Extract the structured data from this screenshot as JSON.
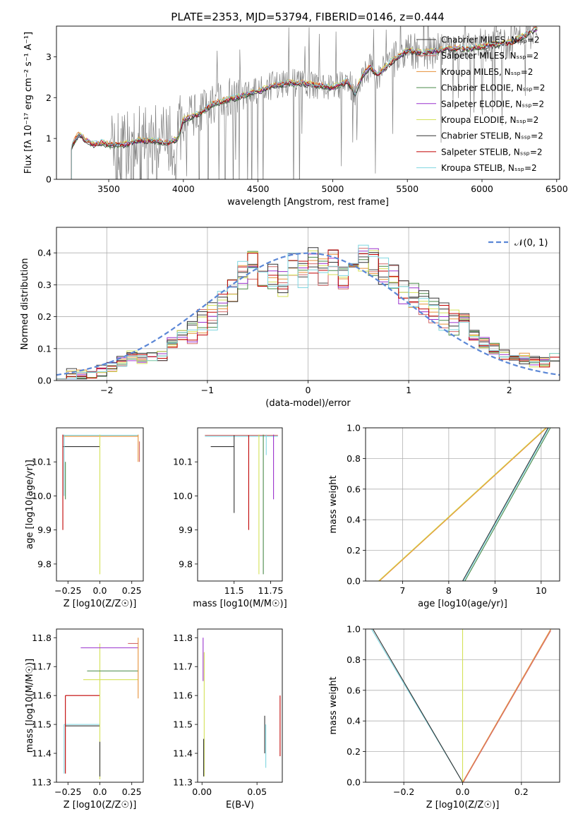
{
  "figure": {
    "title": "PLATE=2353, MJD=53794, FIBERID=0146, z=0.444"
  },
  "chart_data": [
    {
      "id": "spectrum",
      "type": "line",
      "xlabel": "wavelength [Angstrom, rest frame]",
      "ylabel": "Flux [fλ 10⁻¹⁷ erg cm⁻² s⁻¹ A⁻¹]",
      "xlim": [
        3150,
        6520
      ],
      "ylim": [
        0,
        3.75
      ],
      "xticks": [
        3500,
        4000,
        4500,
        5000,
        5500,
        6000,
        6500
      ],
      "yticks": [
        0,
        1,
        2,
        3
      ],
      "grid": false,
      "legend_position": "upper right",
      "series": [
        {
          "name": "Chabrier MILES, N_SSP=2",
          "color": "#404040"
        },
        {
          "name": "Salpeter MILES, N_SSP=2",
          "color": "#d46a6a"
        },
        {
          "name": "Kroupa MILES, N_SSP=2",
          "color": "#e69138"
        },
        {
          "name": "Chabrier ELODIE, N_SSP=2",
          "color": "#4a8a4a"
        },
        {
          "name": "Salpeter ELODIE, N_SSP=2",
          "color": "#9a32cd"
        },
        {
          "name": "Kroupa ELODIE, N_SSP=2",
          "color": "#d4e157"
        },
        {
          "name": "Chabrier STELIB, N_SSP=2",
          "color": "#333333"
        },
        {
          "name": "Salpeter STELIB, N_SSP=2",
          "color": "#c00000"
        },
        {
          "name": "Kroupa STELIB, N_SSP=2",
          "color": "#7fd6e0"
        }
      ],
      "continuum": {
        "x": [
          3250,
          3280,
          3300,
          3350,
          3400,
          3450,
          3500,
          3600,
          3700,
          3800,
          3900,
          3960,
          4000,
          4100,
          4200,
          4300,
          4400,
          4500,
          4600,
          4700,
          4800,
          4900,
          5000,
          5100,
          5150,
          5200,
          5250,
          5300,
          5400,
          5500,
          5600,
          5700,
          5800,
          5900,
          6000,
          6100,
          6200,
          6300,
          6370
        ],
        "y": [
          0.8,
          1.0,
          1.1,
          0.95,
          0.85,
          0.9,
          0.85,
          0.85,
          0.95,
          0.95,
          0.9,
          1.0,
          1.45,
          1.6,
          1.85,
          1.95,
          2.05,
          2.15,
          2.3,
          2.35,
          2.35,
          2.3,
          2.25,
          2.4,
          2.1,
          2.55,
          2.75,
          2.55,
          2.9,
          3.15,
          3.1,
          3.15,
          3.2,
          3.2,
          3.25,
          3.3,
          3.35,
          3.55,
          3.7
        ]
      },
      "observed_trace": {
        "color": "#808080",
        "x_range": [
          3250,
          6370
        ]
      }
    },
    {
      "id": "residuals",
      "type": "line",
      "xlabel": "(data-model)/error",
      "ylabel": "Normed distribution",
      "xlim": [
        -2.5,
        2.5
      ],
      "ylim": [
        0,
        0.48
      ],
      "xticks": [
        -2,
        -1,
        0,
        1,
        2
      ],
      "yticks": [
        0.0,
        0.1,
        0.2,
        0.3,
        0.4
      ],
      "grid": true,
      "legend_position": "upper right",
      "reference_curve": {
        "name": "𝒩(0, 1)",
        "mean": 0,
        "sigma": 1,
        "color": "#5b87d6",
        "style": "dashed"
      },
      "histogram_bin_width": 0.1,
      "histogram_centers_approx": [
        -2.45,
        -2.35,
        -2.25,
        -2.15,
        -2.05,
        -1.95,
        -1.85,
        -1.75,
        -1.65,
        -1.55,
        -1.45,
        -1.35,
        -1.25,
        -1.15,
        -1.05,
        -0.95,
        -0.85,
        -0.75,
        -0.65,
        -0.55,
        -0.45,
        -0.35,
        -0.25,
        -0.15,
        -0.05,
        0.05,
        0.15,
        0.25,
        0.35,
        0.45,
        0.55,
        0.65,
        0.75,
        0.85,
        0.95,
        1.05,
        1.15,
        1.25,
        1.35,
        1.45,
        1.55,
        1.65,
        1.75,
        1.85,
        1.95,
        2.05,
        2.15,
        2.25,
        2.35,
        2.45
      ],
      "histogram_values_approx": [
        0.015,
        0.02,
        0.02,
        0.025,
        0.03,
        0.045,
        0.06,
        0.075,
        0.07,
        0.07,
        0.08,
        0.12,
        0.14,
        0.16,
        0.18,
        0.2,
        0.25,
        0.28,
        0.33,
        0.36,
        0.3,
        0.32,
        0.3,
        0.36,
        0.33,
        0.38,
        0.34,
        0.37,
        0.33,
        0.36,
        0.38,
        0.37,
        0.34,
        0.32,
        0.28,
        0.27,
        0.25,
        0.22,
        0.2,
        0.18,
        0.17,
        0.14,
        0.12,
        0.1,
        0.08,
        0.07,
        0.07,
        0.06,
        0.06,
        0.07
      ]
    },
    {
      "id": "age_vs_Z",
      "type": "line",
      "xlabel": "Z [log10(Z/Z☉)]",
      "ylabel": "age  [log10(age/yr)]",
      "xlim": [
        -0.34,
        0.34
      ],
      "ylim": [
        9.75,
        10.2
      ],
      "xticks": [
        -0.25,
        0.0,
        0.25
      ],
      "yticks": [
        9.8,
        9.9,
        10.0,
        10.1
      ]
    },
    {
      "id": "age_vs_mass",
      "type": "line",
      "xlabel": "mass [log10(M/M☉)]",
      "ylabel": "",
      "xlim": [
        11.25,
        11.83
      ],
      "ylim": [
        9.75,
        10.2
      ],
      "xticks": [
        11.5,
        11.75
      ],
      "yticks": [
        9.8,
        9.9,
        10.0,
        10.1
      ]
    },
    {
      "id": "massweight_vs_age",
      "type": "line",
      "xlabel": "age  [log10(age/yr)]",
      "ylabel": "mass weight",
      "xlim": [
        6.2,
        10.4
      ],
      "ylim": [
        0,
        1.0
      ],
      "xticks": [
        7,
        8,
        9,
        10
      ],
      "yticks": [
        0.0,
        0.2,
        0.4,
        0.6,
        0.8,
        1.0
      ],
      "grid": true
    },
    {
      "id": "mass_vs_Z",
      "type": "line",
      "xlabel": "Z [log10(Z/Z☉)]",
      "ylabel": "mass [log10(M/M☉)]",
      "xlim": [
        -0.34,
        0.34
      ],
      "ylim": [
        11.3,
        11.83
      ],
      "xticks": [
        -0.25,
        0.0,
        0.25
      ],
      "yticks": [
        11.3,
        11.4,
        11.5,
        11.6,
        11.7,
        11.8
      ]
    },
    {
      "id": "mass_vs_EBV",
      "type": "line",
      "xlabel": "E(B-V)",
      "ylabel": "",
      "xlim": [
        -0.004,
        0.073
      ],
      "ylim": [
        11.3,
        11.83
      ],
      "xticks": [
        0.0,
        0.05
      ],
      "yticks": [
        11.3,
        11.4,
        11.5,
        11.6,
        11.7,
        11.8
      ]
    },
    {
      "id": "massweight_vs_Z",
      "type": "line",
      "xlabel": "Z [log10(Z/Z☉)]",
      "ylabel": "mass weight",
      "xlim": [
        -0.33,
        0.33
      ],
      "ylim": [
        0,
        1.0
      ],
      "xticks": [
        -0.2,
        0.0,
        0.2
      ],
      "yticks": [
        0.0,
        0.2,
        0.4,
        0.6,
        0.8,
        1.0
      ],
      "grid": true
    }
  ]
}
